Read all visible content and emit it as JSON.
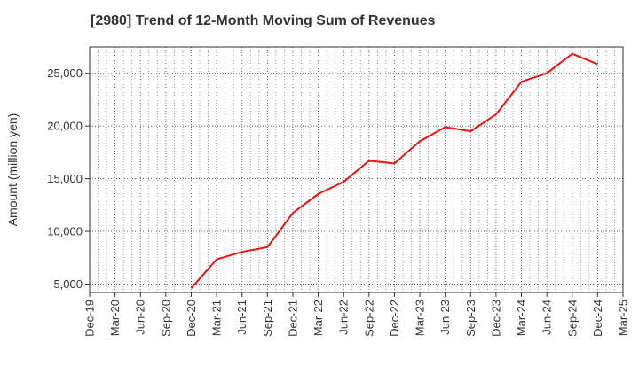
{
  "chart_data": {
    "type": "line",
    "title": "[2980]  Trend of 12-Month Moving Sum of Revenues",
    "xlabel": "",
    "ylabel": "Amount (million yen)",
    "x_ticks": [
      "Dec-19",
      "Mar-20",
      "Jun-20",
      "Sep-20",
      "Dec-20",
      "Mar-21",
      "Jun-21",
      "Sep-21",
      "Dec-21",
      "Mar-22",
      "Jun-22",
      "Sep-22",
      "Dec-22",
      "Mar-23",
      "Jun-23",
      "Sep-23",
      "Dec-23",
      "Mar-24",
      "Jun-24",
      "Sep-24",
      "Dec-24",
      "Mar-25"
    ],
    "y_ticks": [
      "5,000",
      "10,000",
      "15,000",
      "20,000",
      "25,000"
    ],
    "y_tick_values": [
      5000,
      10000,
      15000,
      20000,
      25000
    ],
    "ylim": [
      4200,
      27500
    ],
    "grid": true,
    "series": [
      {
        "color": "#ee1111",
        "x": [
          "Dec-20",
          "Mar-21",
          "Jun-21",
          "Sep-21",
          "Dec-21",
          "Mar-22",
          "Jun-22",
          "Sep-22",
          "Dec-22",
          "Mar-23",
          "Jun-23",
          "Sep-23",
          "Dec-23",
          "Mar-24",
          "Jun-24",
          "Sep-24",
          "Dec-24"
        ],
        "values": [
          4600,
          7350,
          8050,
          8500,
          11750,
          13550,
          14700,
          16700,
          16450,
          18550,
          19900,
          19500,
          21100,
          24200,
          25000,
          26850,
          25850
        ]
      }
    ]
  }
}
